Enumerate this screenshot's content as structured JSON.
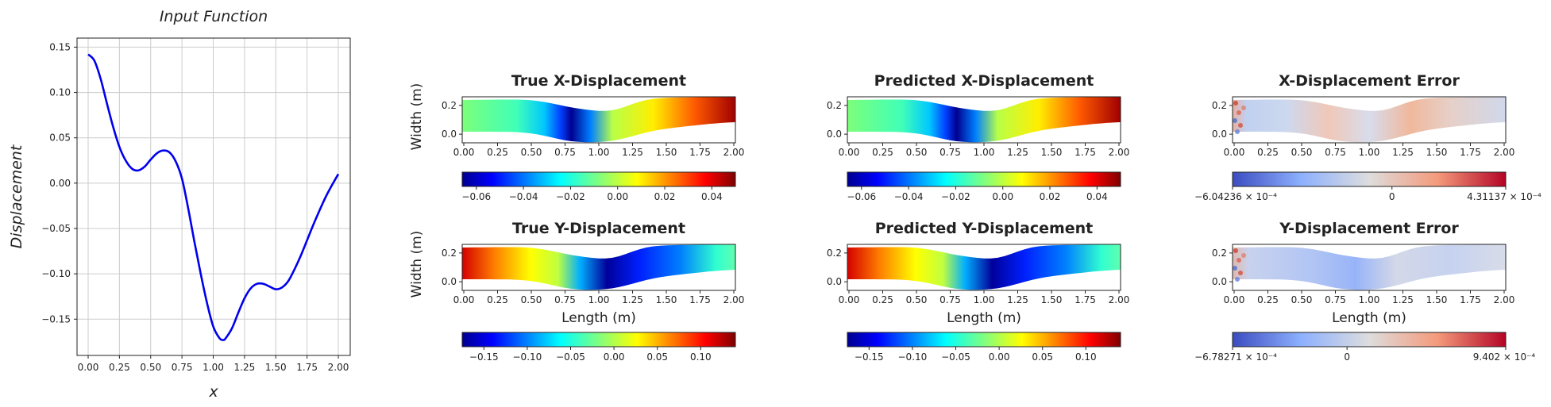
{
  "chart_data": [
    {
      "type": "line",
      "title": "Input Function",
      "xlabel": "x",
      "ylabel": "Displacement",
      "xlim": [
        0,
        2
      ],
      "ylim": [
        -0.19,
        0.16
      ],
      "grid": true,
      "color": "#0000ee",
      "xticks": [
        "0.00",
        "0.25",
        "0.50",
        "0.75",
        "1.00",
        "1.25",
        "1.50",
        "1.75",
        "2.00"
      ],
      "yticks": [
        "0.15",
        "0.10",
        "0.05",
        "0.00",
        "−0.05",
        "−0.10",
        "−0.15"
      ],
      "x": [
        0.0,
        0.05,
        0.1,
        0.15,
        0.2,
        0.25,
        0.3,
        0.35,
        0.4,
        0.45,
        0.5,
        0.55,
        0.6,
        0.65,
        0.7,
        0.75,
        0.8,
        0.85,
        0.9,
        0.95,
        1.0,
        1.05,
        1.08,
        1.1,
        1.15,
        1.2,
        1.25,
        1.3,
        1.35,
        1.4,
        1.45,
        1.5,
        1.55,
        1.6,
        1.65,
        1.7,
        1.75,
        1.8,
        1.85,
        1.9,
        1.95,
        2.0
      ],
      "y": [
        0.142,
        0.135,
        0.115,
        0.088,
        0.062,
        0.04,
        0.025,
        0.016,
        0.014,
        0.018,
        0.026,
        0.033,
        0.036,
        0.034,
        0.024,
        0.005,
        -0.028,
        -0.065,
        -0.1,
        -0.132,
        -0.158,
        -0.171,
        -0.173,
        -0.171,
        -0.16,
        -0.143,
        -0.127,
        -0.116,
        -0.111,
        -0.111,
        -0.114,
        -0.117,
        -0.115,
        -0.108,
        -0.095,
        -0.08,
        -0.063,
        -0.046,
        -0.03,
        -0.015,
        -0.002,
        0.01
      ]
    },
    {
      "type": "heatmap",
      "title": "True X-Displacement",
      "ylabel": "Width (m)",
      "xlabel": "",
      "xlim": [
        0,
        2
      ],
      "ylim": [
        -0.06,
        0.26
      ],
      "xticks": [
        "0.00",
        "0.25",
        "0.50",
        "0.75",
        "1.00",
        "1.25",
        "1.50",
        "1.75",
        "2.00"
      ],
      "yticks": [
        "0.2",
        "0.0"
      ],
      "colormap": "jet",
      "colorbar_ticks": [
        "−0.06",
        "−0.04",
        "−0.02",
        "0.00",
        "0.02",
        "0.04"
      ],
      "colorbar_range": [
        -0.066,
        0.05
      ]
    },
    {
      "type": "heatmap",
      "title": "Predicted X-Displacement",
      "xlabel": "",
      "xlim": [
        0,
        2
      ],
      "ylim": [
        -0.06,
        0.26
      ],
      "xticks": [
        "0.00",
        "0.25",
        "0.50",
        "0.75",
        "1.00",
        "1.25",
        "1.50",
        "1.75",
        "2.00"
      ],
      "yticks": [
        "0.2",
        "0.0"
      ],
      "colormap": "jet",
      "colorbar_ticks": [
        "−0.06",
        "−0.04",
        "−0.02",
        "0.00",
        "0.02",
        "0.04"
      ],
      "colorbar_range": [
        -0.066,
        0.05
      ]
    },
    {
      "type": "heatmap",
      "title": "X-Displacement Error",
      "xlabel": "",
      "xlim": [
        0,
        2
      ],
      "ylim": [
        -0.06,
        0.26
      ],
      "xticks": [
        "0.00",
        "0.25",
        "0.50",
        "0.75",
        "1.00",
        "1.25",
        "1.50",
        "1.75",
        "2.00"
      ],
      "yticks": [
        "0.2",
        "0.0"
      ],
      "colormap": "coolwarm",
      "colorbar_ticks": [
        "−6.04236 × 10⁻⁴",
        "0",
        "4.31137 × 10⁻⁴"
      ],
      "colorbar_range": [
        -0.000604236,
        0.000431137
      ]
    },
    {
      "type": "heatmap",
      "title": "True Y-Displacement",
      "ylabel": "Width (m)",
      "xlabel": "Length (m)",
      "xlim": [
        0,
        2
      ],
      "ylim": [
        -0.06,
        0.26
      ],
      "xticks": [
        "0.00",
        "0.25",
        "0.50",
        "0.75",
        "1.00",
        "1.25",
        "1.50",
        "1.75",
        "2.00"
      ],
      "yticks": [
        "0.2",
        "0.0"
      ],
      "colormap": "jet",
      "colorbar_ticks": [
        "−0.15",
        "−0.10",
        "−0.05",
        "0.00",
        "0.05",
        "0.10"
      ],
      "colorbar_range": [
        -0.175,
        0.14
      ]
    },
    {
      "type": "heatmap",
      "title": "Predicted Y-Displacement",
      "xlabel": "Length (m)",
      "xlim": [
        0,
        2
      ],
      "ylim": [
        -0.06,
        0.26
      ],
      "xticks": [
        "0.00",
        "0.25",
        "0.50",
        "0.75",
        "1.00",
        "1.25",
        "1.50",
        "1.75",
        "2.00"
      ],
      "yticks": [
        "0.2",
        "0.0"
      ],
      "colormap": "jet",
      "colorbar_ticks": [
        "−0.15",
        "−0.10",
        "−0.05",
        "0.00",
        "0.05",
        "0.10"
      ],
      "colorbar_range": [
        -0.175,
        0.14
      ]
    },
    {
      "type": "heatmap",
      "title": "Y-Displacement Error",
      "xlabel": "Length (m)",
      "xlim": [
        0,
        2
      ],
      "ylim": [
        -0.06,
        0.26
      ],
      "xticks": [
        "0.00",
        "0.25",
        "0.50",
        "0.75",
        "1.00",
        "1.25",
        "1.50",
        "1.75",
        "2.00"
      ],
      "yticks": [
        "0.2",
        "0.0"
      ],
      "colormap": "coolwarm",
      "colorbar_ticks": [
        "−6.78271 × 10⁻⁴",
        "0",
        "9.402 × 10⁻⁴"
      ],
      "colorbar_range": [
        -0.000678271,
        0.0009402
      ]
    }
  ]
}
